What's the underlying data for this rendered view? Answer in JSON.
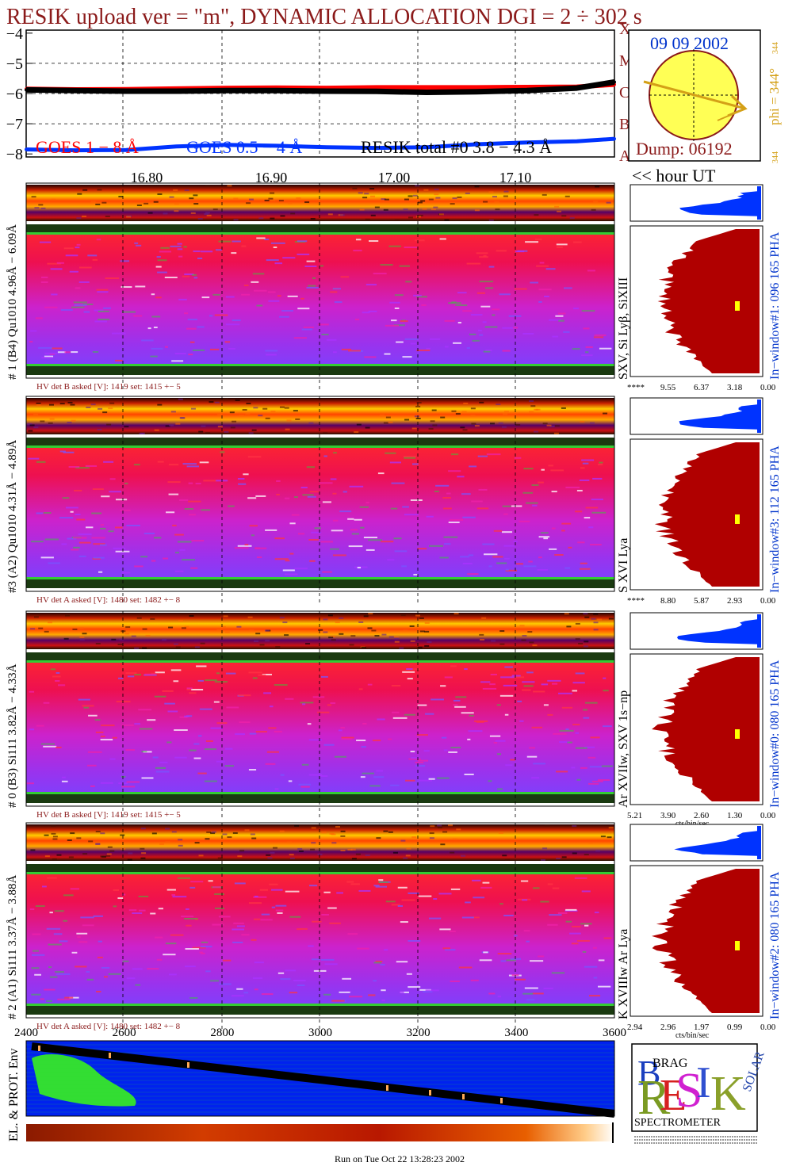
{
  "title": "RESIK upload ver = \"m\", DYNAMIC ALLOCATION  DGI =   2 ÷ 302 s",
  "colors": {
    "title": "#8b1a1a",
    "goes_long": "#ff0000",
    "goes_short": "#0033ff",
    "resik_total": "#000000",
    "sun": "#ffff55",
    "phi_text": "#d4a017",
    "histogram_red": "#b00000",
    "histogram_blue": "#0033ff",
    "env_blue": "#0022ee",
    "env_green": "#33dd33"
  },
  "lightcurve": {
    "yticks": [
      "−4",
      "−5",
      "−6",
      "−7",
      "−8"
    ],
    "legend_goes_long": "GOES 1 − 8 Å",
    "legend_goes_short": "GOES 0.5 − 4 Å",
    "legend_resik": "RESIK total #0  3.8 − 4.3 Å",
    "xticks": [
      "16.80",
      "16.90",
      "17.00",
      "17.10"
    ],
    "hour_label": "<< hour UT",
    "class_letters": [
      "A",
      "B",
      "C",
      "M",
      "X"
    ]
  },
  "sun_box": {
    "date": "09 09 2002",
    "dump": "Dump: 06192",
    "phi": "phi = 344°",
    "phi_sub": "344",
    "phi_bottom": "344"
  },
  "panels": [
    {
      "left_label": "# 1 (B4) Qu1010 4.96Å − 6.09Å",
      "lines": "SXV, Si Lyβ, SiXIII",
      "right_label": "In−window#1:  096 165 PHA",
      "hv": "HV det B asked [V]:  1419 set:  1415 +−    5",
      "xticks": [
        "****",
        "9.55",
        "6.37",
        "3.18",
        "0.00"
      ]
    },
    {
      "left_label": "#3 (A2) Qu1010  4.31Å − 4.89Å",
      "lines": "S XVI Lya",
      "right_label": "In−window#3:  112 165 PHA",
      "hv": "HV det A asked [V]:  1480 set:  1482 +−    8",
      "xticks": [
        "****",
        "8.80",
        "5.87",
        "2.93",
        "0.00"
      ]
    },
    {
      "left_label": "# 0 (B3) Si111  3.82Å − 4.33Å",
      "lines": "Ar XVIIw,  SXV 1s−np",
      "right_label": "In−window#0:  080 165 PHA",
      "hv": "HV det B asked [V]:  1419 set:  1415 +−    5",
      "xticks": [
        "5.21",
        "3.90",
        "2.60",
        "1.30",
        "0.00"
      ],
      "xunit": "cts/bin/sec"
    },
    {
      "left_label": "# 2 (A1) Si111  3.37Å − 3.88Å",
      "lines": "K XVIIIw  Ar Lya",
      "right_label": "In−window#2:  080 165 PHA",
      "hv": "HV det A asked [V]:  1480 set:  1482 +−    8",
      "xticks": [
        "2.94",
        "2.96",
        "1.97",
        "0.99",
        "0.00"
      ],
      "xunit": "cts/bin/sec"
    }
  ],
  "bottom": {
    "xticks": [
      "2400",
      "2600",
      "2800",
      "3000",
      "3200",
      "3400",
      "3600"
    ],
    "env_label": "EL. & PROT. Env",
    "run_text": "Run on Tue Oct 22 13:28:23 2002"
  },
  "logo": {
    "letters": [
      "R",
      "E",
      "S",
      "I",
      "K"
    ],
    "brag": "BRAG",
    "solar": "SOLAR",
    "spectrometer": "SPECTROMETER"
  },
  "chart_data": {
    "type": "line",
    "title": "RESIK upload ver = \"m\", DYNAMIC ALLOCATION  DGI =   2 ÷ 302 s",
    "xlabel": "hour UT",
    "ylabel": "",
    "xlim": [
      16.72,
      17.19
    ],
    "ylim": [
      -8.1,
      -3.9
    ],
    "x": [
      16.72,
      16.76,
      16.8,
      16.84,
      16.88,
      16.92,
      16.96,
      17.0,
      17.04,
      17.08,
      17.12,
      17.16,
      17.19
    ],
    "series": [
      {
        "name": "GOES 1 − 8 Å",
        "values": [
          -5.85,
          -5.87,
          -5.86,
          -5.84,
          -5.82,
          -5.81,
          -5.82,
          -5.8,
          -5.8,
          -5.8,
          -5.79,
          -5.78,
          -5.7
        ]
      },
      {
        "name": "GOES 0.5 − 4 Å",
        "values": [
          -7.85,
          -7.88,
          -7.87,
          -7.75,
          -7.7,
          -7.73,
          -7.78,
          -7.8,
          -7.78,
          -7.68,
          -7.62,
          -7.58,
          -7.5
        ]
      },
      {
        "name": "RESIK total #0  3.8 − 4.3 Å",
        "values": [
          -5.88,
          -5.9,
          -5.92,
          -5.92,
          -5.9,
          -5.9,
          -5.92,
          -5.93,
          -5.96,
          -5.94,
          -5.9,
          -5.82,
          -5.62
        ]
      }
    ]
  }
}
